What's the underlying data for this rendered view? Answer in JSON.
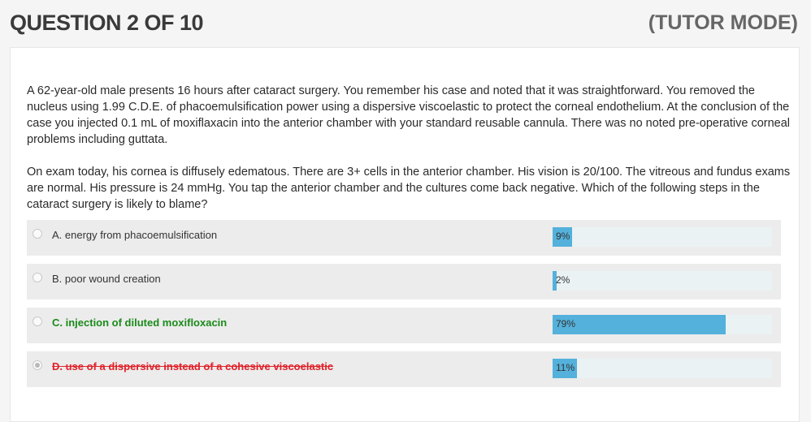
{
  "header": {
    "question_title": "QUESTION 2 OF 10",
    "mode": "(TUTOR MODE)"
  },
  "question": {
    "paragraph1": "A 62-year-old male presents 16 hours after cataract surgery. You remember his case and noted that it was straightforward. You removed the nucleus using 1.99 C.D.E. of phacoemulsification power using a dispersive viscoelastic to protect the corneal endothelium. At the conclusion of the case you injected 0.1 mL of moxiflaxacin into the anterior chamber with your standard reusable cannula. There was no noted pre-operative corneal problems including guttata.",
    "paragraph2": "On exam today, his cornea is diffusely edematous. There are 3+ cells in the anterior chamber. His vision is 20/100. The vitreous and fundus exams are normal. His pressure is 24 mmHg. You tap the anterior chamber and the cultures come back negative. Which of the following steps in the cataract surgery is likely to blame?"
  },
  "options": [
    {
      "label": "A. energy from phacoemulsification",
      "percent": 9,
      "percent_text": "9%",
      "status": "normal",
      "selected": false
    },
    {
      "label": "B. poor wound creation",
      "percent": 2,
      "percent_text": "2%",
      "status": "normal",
      "selected": false
    },
    {
      "label": "C. injection of diluted moxifloxacin",
      "percent": 79,
      "percent_text": "79%",
      "status": "correct",
      "selected": false
    },
    {
      "label": "D. use of a dispersive instead of a cohesive viscoelastic",
      "percent": 11,
      "percent_text": "11%",
      "status": "wrong",
      "selected": true
    }
  ],
  "colors": {
    "bar_fill": "#54b1db",
    "bar_track": "#eaf2f4",
    "correct": "#1a8a1a",
    "wrong": "#e0222a"
  }
}
